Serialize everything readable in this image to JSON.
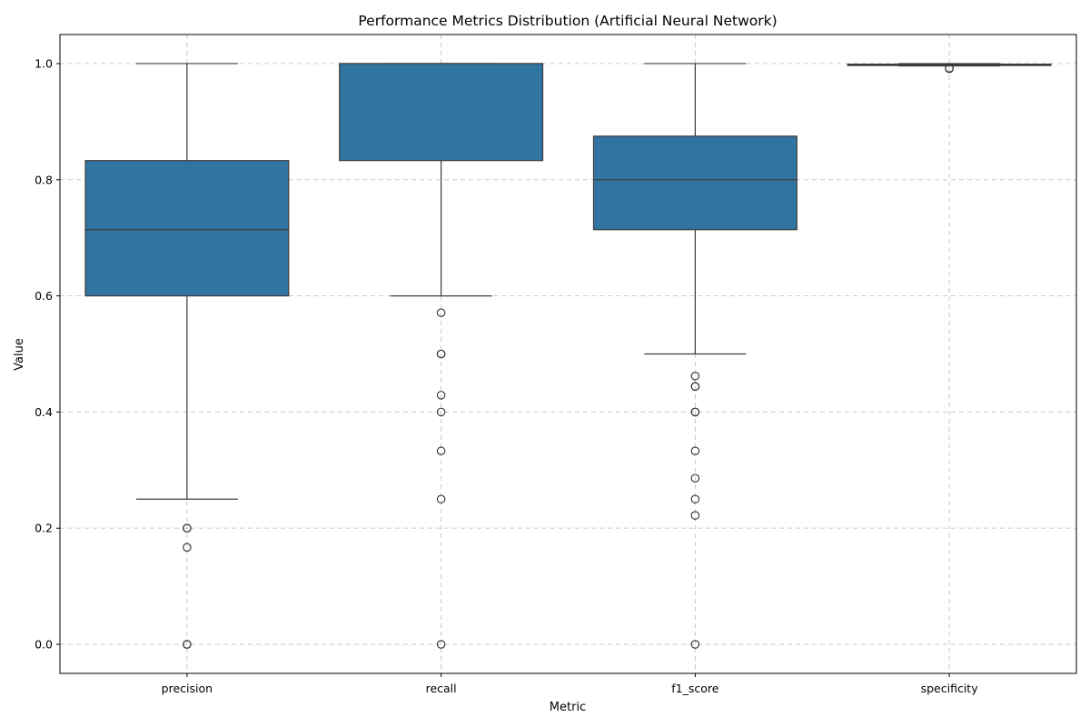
{
  "chart_data": {
    "type": "box",
    "title": "Performance Metrics Distribution (Artificial Neural Network)",
    "xlabel": "Metric",
    "ylabel": "Value",
    "ylim": [
      -0.05,
      1.05
    ],
    "yticks": [
      0.0,
      0.2,
      0.4,
      0.6,
      0.8,
      1.0
    ],
    "ytick_labels": [
      "0.0",
      "0.2",
      "0.4",
      "0.6",
      "0.8",
      "1.0"
    ],
    "grid": true,
    "box_color": "#3274a1",
    "edge_color": "#3d3d3d",
    "boxes": [
      {
        "category": "precision",
        "whisker_low": 0.25,
        "q1": 0.6,
        "median": 0.714,
        "q3": 0.833,
        "whisker_high": 1.0,
        "outliers": [
          0.2,
          0.2,
          0.167,
          0.0,
          0.0
        ]
      },
      {
        "category": "recall",
        "whisker_low": 0.6,
        "q1": 0.833,
        "median": 1.0,
        "q3": 1.0,
        "whisker_high": 1.0,
        "outliers": [
          0.571,
          0.5,
          0.5,
          0.429,
          0.4,
          0.333,
          0.25,
          0.0
        ]
      },
      {
        "category": "f1_score",
        "whisker_low": 0.5,
        "q1": 0.714,
        "median": 0.8,
        "q3": 0.875,
        "whisker_high": 1.0,
        "outliers": [
          0.462,
          0.444,
          0.444,
          0.4,
          0.4,
          0.333,
          0.286,
          0.25,
          0.222,
          0.0
        ]
      },
      {
        "category": "specificity",
        "whisker_low": 0.996,
        "q1": 0.997,
        "median": 0.998,
        "q3": 0.999,
        "whisker_high": 1.0,
        "outliers": [
          0.992,
          0.991
        ]
      }
    ]
  }
}
